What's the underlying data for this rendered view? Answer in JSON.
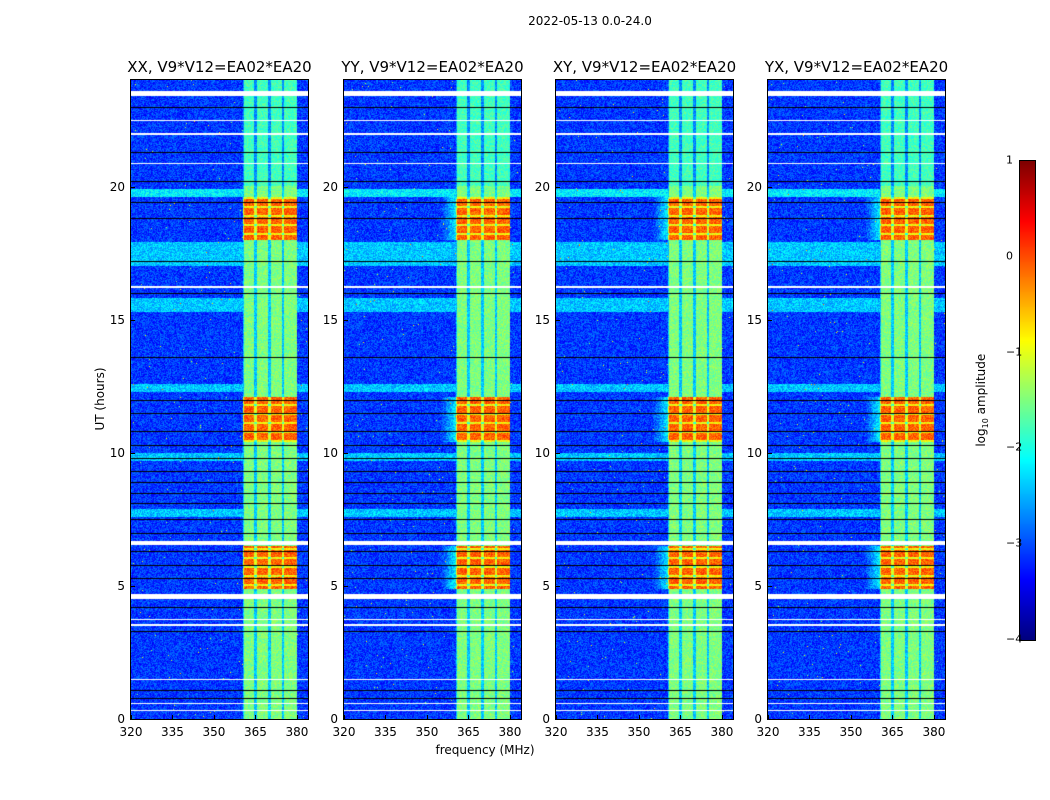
{
  "chart_data": {
    "type": "heatmap",
    "title": "2022-05-13 0.0-24.0",
    "xlabel": "frequency (MHz)",
    "ylabel": "UT (hours)",
    "xlim": [
      320,
      384
    ],
    "ylim": [
      0,
      24
    ],
    "xticks": [
      "320",
      "335",
      "350",
      "365",
      "380"
    ],
    "xtick_values": [
      320,
      335,
      350,
      365,
      380
    ],
    "yticks": [
      "0",
      "5",
      "10",
      "15",
      "20"
    ],
    "ytick_values": [
      0,
      5,
      10,
      15,
      20
    ],
    "panels": [
      {
        "title": "XX, V9*V12=EA02*EA20",
        "seed": 11
      },
      {
        "title": "YY, V9*V12=EA02*EA20",
        "seed": 23
      },
      {
        "title": "XY, V9*V12=EA02*EA20",
        "seed": 37
      },
      {
        "title": "YX, V9*V12=EA02*EA20",
        "seed": 51
      }
    ],
    "colorbar": {
      "label_prefix": "log",
      "label_sub": "10",
      "label_suffix": " amplitude",
      "colormap": "jet",
      "range": [
        -4,
        1
      ],
      "ticks": [
        "−4",
        "−3",
        "−2",
        "−1",
        "0",
        "1"
      ],
      "tick_values": [
        -4,
        -3,
        -2,
        -1,
        0,
        1
      ]
    },
    "background_level": -3.1,
    "rfi_band_mhz": [
      360.5,
      380
    ],
    "channel_edges_mhz": [
      365,
      370,
      375
    ],
    "high_amplitude_hours": [
      [
        18.0,
        19.6
      ],
      [
        10.4,
        12.1
      ],
      [
        4.9,
        6.5
      ]
    ],
    "elevated_hours": [
      [
        17.0,
        17.9
      ],
      [
        15.3,
        15.8
      ],
      [
        12.3,
        12.6
      ],
      [
        9.7,
        10.0
      ],
      [
        7.6,
        7.9
      ]
    ],
    "flagged_hours": [
      [
        23.4,
        23.6
      ],
      [
        22.45,
        22.5
      ],
      [
        21.95,
        22.0
      ],
      [
        20.85,
        20.9
      ],
      [
        16.2,
        16.25
      ],
      [
        6.55,
        6.7
      ],
      [
        4.5,
        4.7
      ],
      [
        3.7,
        3.75
      ],
      [
        3.5,
        3.55
      ],
      [
        1.45,
        1.5
      ],
      [
        0.55,
        0.6
      ],
      [
        0.3,
        0.35
      ]
    ],
    "dark_line_hours": [
      23.0,
      21.3,
      20.2,
      19.4,
      18.8,
      17.2,
      16.0,
      13.6,
      12.0,
      11.5,
      10.8,
      10.3,
      9.8,
      9.3,
      8.9,
      8.5,
      8.1,
      7.5,
      7.0,
      6.3,
      5.8,
      5.3,
      4.2,
      3.3,
      1.1,
      0.8
    ]
  }
}
